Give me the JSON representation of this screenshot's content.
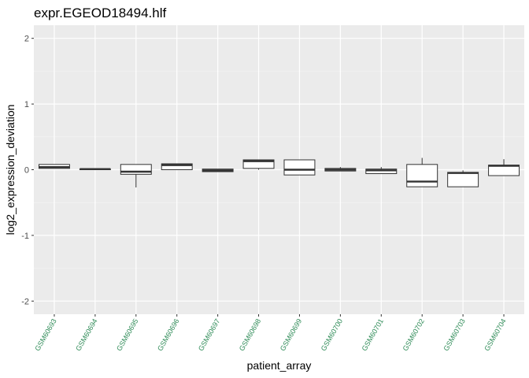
{
  "chart_data": {
    "type": "boxplot",
    "title": "expr.EGEOD18494.hlf",
    "xlabel": "patient_array",
    "ylabel": "log2_expression_deviation",
    "ylim": [
      -2.2,
      2.2
    ],
    "yticks": [
      -2,
      -1,
      0,
      1,
      2
    ],
    "ytick_labels": [
      "-2",
      "-1",
      "0",
      "1",
      "2"
    ],
    "grid": true,
    "x_tick_color": "#2e8b57",
    "categories": [
      "GSM60693",
      "GSM60694",
      "GSM60695",
      "GSM60696",
      "GSM60697",
      "GSM60698",
      "GSM60699",
      "GSM60700",
      "GSM60701",
      "GSM60702",
      "GSM60703",
      "GSM60704"
    ],
    "boxes": [
      {
        "min": 0.02,
        "q1": 0.02,
        "median": 0.04,
        "q3": 0.08,
        "max": 0.08
      },
      {
        "min": 0.0,
        "q1": 0.0,
        "median": 0.01,
        "q3": 0.01,
        "max": 0.01
      },
      {
        "min": -0.27,
        "q1": -0.07,
        "median": -0.03,
        "q3": 0.08,
        "max": 0.08
      },
      {
        "min": 0.0,
        "q1": 0.0,
        "median": 0.07,
        "q3": 0.09,
        "max": 0.09
      },
      {
        "min": -0.03,
        "q1": -0.03,
        "median": -0.01,
        "q3": 0.01,
        "max": 0.01
      },
      {
        "min": 0.0,
        "q1": 0.02,
        "median": 0.13,
        "q3": 0.15,
        "max": 0.15
      },
      {
        "min": -0.08,
        "q1": -0.08,
        "median": 0.0,
        "q3": 0.15,
        "max": 0.15
      },
      {
        "min": -0.02,
        "q1": -0.02,
        "median": 0.0,
        "q3": 0.02,
        "max": 0.04
      },
      {
        "min": -0.06,
        "q1": -0.06,
        "median": -0.01,
        "q3": 0.01,
        "max": 0.04
      },
      {
        "min": -0.26,
        "q1": -0.26,
        "median": -0.18,
        "q3": 0.08,
        "max": 0.18
      },
      {
        "min": -0.26,
        "q1": -0.26,
        "median": -0.05,
        "q3": -0.04,
        "max": -0.01
      },
      {
        "min": -0.09,
        "q1": -0.09,
        "median": 0.06,
        "q3": 0.07,
        "max": 0.16
      }
    ]
  }
}
